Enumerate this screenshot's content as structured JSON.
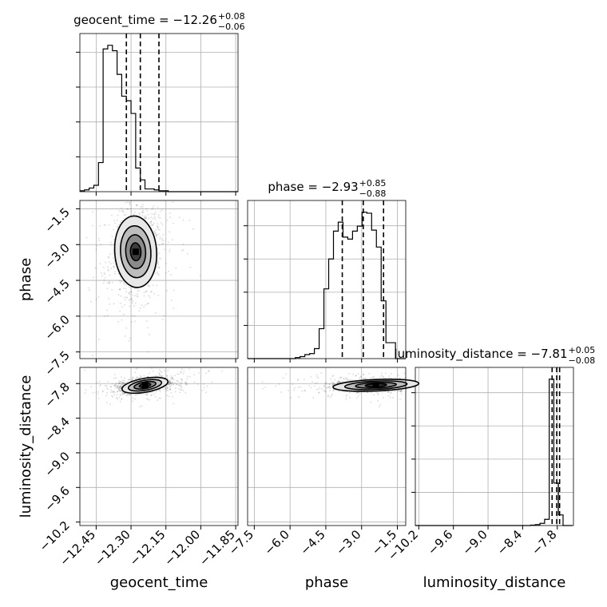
{
  "chart_data": {
    "type": "corner",
    "parameters": [
      "geocent_time",
      "phase",
      "luminosity_distance"
    ],
    "axis_labels": [
      "geocent_time",
      "phase",
      "luminosity_distance"
    ],
    "grid": true,
    "ranges": {
      "geocent_time": [
        -12.52,
        -11.84
      ],
      "phase": [
        -7.78,
        -1.15
      ],
      "luminosity_distance": [
        -10.26,
        -7.52
      ]
    },
    "ticks": {
      "geocent_time": [
        -12.45,
        -12.3,
        -12.15,
        -12.0,
        -11.85
      ],
      "phase": [
        -7.5,
        -6.0,
        -4.5,
        -3.0,
        -1.5
      ],
      "luminosity_distance": [
        -10.2,
        -9.6,
        -9.0,
        -8.4,
        -7.8
      ]
    },
    "tick_labels": {
      "geocent_time": [
        "−12.45",
        "−12.30",
        "−12.15",
        "−12.00",
        "−11.85"
      ],
      "phase": [
        "−7.5",
        "−6.0",
        "−4.5",
        "−3.0",
        "−1.5"
      ],
      "luminosity_distance": [
        "−10.2",
        "−9.6",
        "−9.0",
        "−8.4",
        "−7.8"
      ]
    },
    "titles": [
      {
        "param": "geocent_time",
        "label": "geocent_time = −12.26",
        "plus": "+0.08",
        "minus": "−0.06"
      },
      {
        "param": "phase",
        "label": "phase = −2.93",
        "plus": "+0.85",
        "minus": "−0.88"
      },
      {
        "param": "luminosity_distance",
        "label": "luminosity_distance = −7.81",
        "plus": "+0.05",
        "minus": "−0.08"
      }
    ],
    "quantiles": {
      "geocent_time": [
        -12.32,
        -12.26,
        -12.18
      ],
      "phase": [
        -3.81,
        -2.93,
        -2.08
      ],
      "luminosity_distance": [
        -7.89,
        -7.81,
        -7.76
      ]
    },
    "histograms": {
      "geocent_time": {
        "x_start": -12.52,
        "bin_width": 0.02,
        "counts": [
          1,
          2,
          4,
          7,
          32,
          157,
          161,
          155,
          129,
          105,
          100,
          86,
          26,
          13,
          3,
          3,
          2,
          1,
          1,
          0,
          0,
          0,
          0,
          0,
          0,
          0,
          0,
          0,
          0,
          0,
          0,
          0,
          0,
          0
        ]
      },
      "phase": {
        "x_start": -7.78,
        "bin_width": 0.2,
        "counts": [
          0,
          0,
          0,
          0,
          0,
          0,
          0,
          0,
          0,
          0,
          1,
          2,
          4,
          5,
          10,
          30,
          70,
          100,
          128,
          137,
          122,
          120,
          128,
          133,
          147,
          146,
          129,
          112,
          58,
          16,
          16,
          0,
          0,
          0
        ]
      },
      "luminosity_distance": {
        "x_start": -10.26,
        "bin_width": 0.08,
        "counts": [
          0,
          0,
          0,
          0,
          0,
          0,
          0,
          0,
          0,
          0,
          0,
          0,
          0,
          0,
          0,
          0,
          0,
          0,
          0,
          0,
          0,
          0,
          0,
          0,
          0,
          1,
          2,
          5,
          14,
          331,
          96,
          24,
          0,
          0
        ]
      }
    },
    "joint": [
      {
        "x": "geocent_time",
        "y": "phase",
        "center": [
          -12.28,
          -3.3
        ],
        "spread": [
          0.045,
          0.75
        ],
        "corr": 0.15
      },
      {
        "x": "geocent_time",
        "y": "luminosity_distance",
        "center": [
          -12.24,
          -7.83
        ],
        "spread": [
          0.05,
          0.06
        ],
        "corr": 0.4
      },
      {
        "x": "phase",
        "y": "luminosity_distance",
        "center": [
          -2.4,
          -7.83
        ],
        "spread": [
          0.9,
          0.05
        ],
        "corr": 0.1
      }
    ]
  }
}
